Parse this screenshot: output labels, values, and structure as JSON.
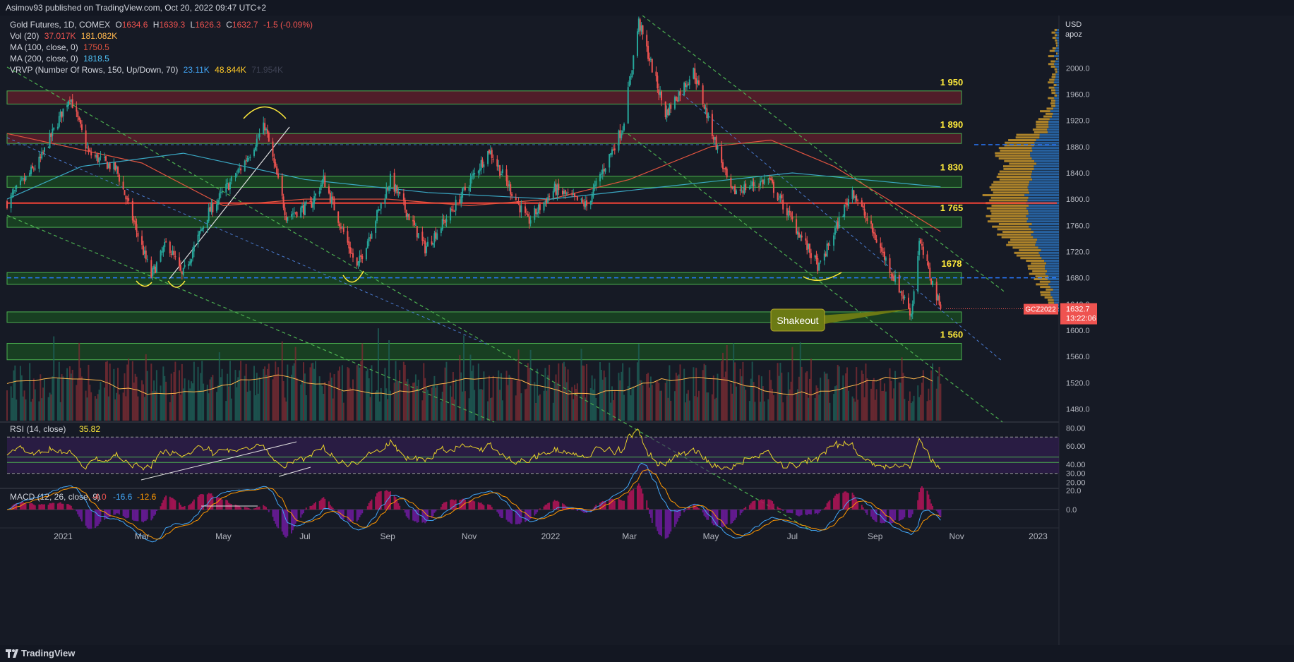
{
  "header": {
    "text": "Asimov93 published on TradingView.com, Oct 20, 2022 09:47 UTC+2"
  },
  "footer": {
    "brand": "TradingView"
  },
  "legend": {
    "main": {
      "title": "Gold Futures, 1D, COMEX",
      "o_label": "O",
      "o": "1634.6",
      "h_label": "H",
      "h": "1639.3",
      "l_label": "L",
      "l": "1626.3",
      "c_label": "C",
      "c": "1632.7",
      "chg": "-1.5 (-0.09%)"
    },
    "vol": {
      "label": "Vol (20)",
      "v1": "37.017K",
      "v2": "181.082K"
    },
    "ma100": {
      "label": "MA (100, close, 0)",
      "value": "1750.5"
    },
    "ma200": {
      "label": "MA (200, close, 0)",
      "value": "1818.5"
    },
    "vrvp": {
      "label": "VRVP (Number Of Rows, 150, Up/Down, 70)",
      "up": "23.11K",
      "down": "48.844K",
      "total": "71.954K"
    }
  },
  "axis": {
    "currency": "USD",
    "scale_note": "apoz",
    "price_ticks": [
      "2000.0",
      "1960.0",
      "1920.0",
      "1880.0",
      "1840.0",
      "1800.0",
      "1760.0",
      "1720.0",
      "1680.0",
      "1640.0",
      "1600.0",
      "1560.0",
      "1520.0",
      "1480.0"
    ],
    "time_ticks": [
      "2021",
      "Mar",
      "May",
      "Jul",
      "Sep",
      "Nov",
      "2022",
      "Mar",
      "May",
      "Jul",
      "Sep",
      "Nov",
      "2023"
    ],
    "rsi_ticks": [
      "80.00",
      "60.00",
      "40.00",
      "30.00",
      "20.00"
    ],
    "macd_ticks": [
      "20.0",
      "0.0"
    ]
  },
  "price_tag": {
    "symbol": "GCZ2022",
    "price": "1632.7",
    "countdown": "13:22:06"
  },
  "annotations": {
    "levels": [
      "1 950",
      "1 890",
      "1 830",
      "1 765",
      "1678",
      "1 560"
    ],
    "shakeout": "Shakeout"
  },
  "rsi": {
    "label": "RSI (14, close)",
    "value": "35.82"
  },
  "macd": {
    "label": "MACD (12, 26, close, 9)",
    "v1": "-4.0",
    "v2": "-16.6",
    "v3": "-12.6"
  },
  "colors": {
    "up": "#26a69a",
    "down": "#ef5350",
    "ma100": "#e0533f",
    "ma200": "#2196f3",
    "zone_red": "#5a1f2a",
    "zone_green": "#1b5e20",
    "level_text": "#ffeb3b",
    "rsi_line": "#e8d22a",
    "rsi_band": "#3a1f5c"
  },
  "chart_data": {
    "type": "candlestick",
    "symbol": "Gold Futures, 1D, COMEX",
    "x_range": [
      "2020-11-20",
      "2023-01-15"
    ],
    "y_range": [
      1460,
      2080
    ],
    "key_closes": [
      {
        "date": "2020-11-20",
        "price": 1795
      },
      {
        "date": "2020-12-15",
        "price": 1860
      },
      {
        "date": "2021-01-06",
        "price": 1958
      },
      {
        "date": "2021-01-20",
        "price": 1870
      },
      {
        "date": "2021-02-10",
        "price": 1845
      },
      {
        "date": "2021-03-08",
        "price": 1683
      },
      {
        "date": "2021-03-20",
        "price": 1735
      },
      {
        "date": "2021-03-31",
        "price": 1682
      },
      {
        "date": "2021-04-20",
        "price": 1780
      },
      {
        "date": "2021-05-15",
        "price": 1850
      },
      {
        "date": "2021-06-01",
        "price": 1912
      },
      {
        "date": "2021-06-17",
        "price": 1775
      },
      {
        "date": "2021-07-05",
        "price": 1790
      },
      {
        "date": "2021-07-15",
        "price": 1830
      },
      {
        "date": "2021-08-09",
        "price": 1695
      },
      {
        "date": "2021-09-03",
        "price": 1830
      },
      {
        "date": "2021-09-29",
        "price": 1725
      },
      {
        "date": "2021-10-20",
        "price": 1785
      },
      {
        "date": "2021-11-16",
        "price": 1875
      },
      {
        "date": "2021-12-15",
        "price": 1765
      },
      {
        "date": "2022-01-04",
        "price": 1815
      },
      {
        "date": "2022-01-28",
        "price": 1790
      },
      {
        "date": "2022-02-24",
        "price": 1910
      },
      {
        "date": "2022-03-08",
        "price": 2070
      },
      {
        "date": "2022-03-28",
        "price": 1930
      },
      {
        "date": "2022-04-18",
        "price": 1995
      },
      {
        "date": "2022-05-16",
        "price": 1810
      },
      {
        "date": "2022-06-13",
        "price": 1830
      },
      {
        "date": "2022-07-21",
        "price": 1695
      },
      {
        "date": "2022-08-15",
        "price": 1815
      },
      {
        "date": "2022-09-28",
        "price": 1625
      },
      {
        "date": "2022-10-04",
        "price": 1735
      },
      {
        "date": "2022-10-20",
        "price": 1632.7
      }
    ],
    "ma100": [
      {
        "date": "2020-11-20",
        "price": 1900
      },
      {
        "date": "2021-03-01",
        "price": 1855
      },
      {
        "date": "2021-05-01",
        "price": 1790
      },
      {
        "date": "2021-07-01",
        "price": 1800
      },
      {
        "date": "2021-09-01",
        "price": 1800
      },
      {
        "date": "2021-11-01",
        "price": 1790
      },
      {
        "date": "2022-01-01",
        "price": 1800
      },
      {
        "date": "2022-03-01",
        "price": 1830
      },
      {
        "date": "2022-05-01",
        "price": 1880
      },
      {
        "date": "2022-06-15",
        "price": 1890
      },
      {
        "date": "2022-08-01",
        "price": 1850
      },
      {
        "date": "2022-10-20",
        "price": 1750.5
      }
    ],
    "ma200": [
      {
        "date": "2020-11-20",
        "price": 1800
      },
      {
        "date": "2021-01-15",
        "price": 1850
      },
      {
        "date": "2021-04-01",
        "price": 1870
      },
      {
        "date": "2021-07-01",
        "price": 1830
      },
      {
        "date": "2021-10-01",
        "price": 1810
      },
      {
        "date": "2022-01-01",
        "price": 1800
      },
      {
        "date": "2022-04-01",
        "price": 1820
      },
      {
        "date": "2022-07-01",
        "price": 1840
      },
      {
        "date": "2022-10-20",
        "price": 1818.5
      }
    ],
    "zones": [
      {
        "color": "red",
        "y_low": 1945,
        "y_high": 1965,
        "label": "1 950"
      },
      {
        "color": "red",
        "y_low": 1885,
        "y_high": 1900,
        "label": "1 890"
      },
      {
        "color": "green",
        "y_low": 1818,
        "y_high": 1835,
        "label": "1 830"
      },
      {
        "color": "green",
        "y_low": 1757,
        "y_high": 1773,
        "label": "1 765"
      },
      {
        "color": "green",
        "y_low": 1670,
        "y_high": 1688,
        "label": "1678"
      },
      {
        "color": "green",
        "y_low": 1612,
        "y_high": 1628,
        "label": ""
      },
      {
        "color": "green",
        "y_low": 1555,
        "y_high": 1580,
        "label": "1 560"
      }
    ],
    "horizontal_lines": [
      {
        "price": 1794,
        "color": "red",
        "style": "solid"
      },
      {
        "price": 1680,
        "color": "blue",
        "style": "dashed"
      },
      {
        "price": 1883,
        "color": "blue",
        "style": "dashed",
        "segment": "right"
      }
    ],
    "rsi": {
      "overbought": 70,
      "oversold": 30,
      "last": 35.82
    },
    "macd": {
      "macd": -16.6,
      "signal": -12.6,
      "hist": -4.0
    }
  }
}
